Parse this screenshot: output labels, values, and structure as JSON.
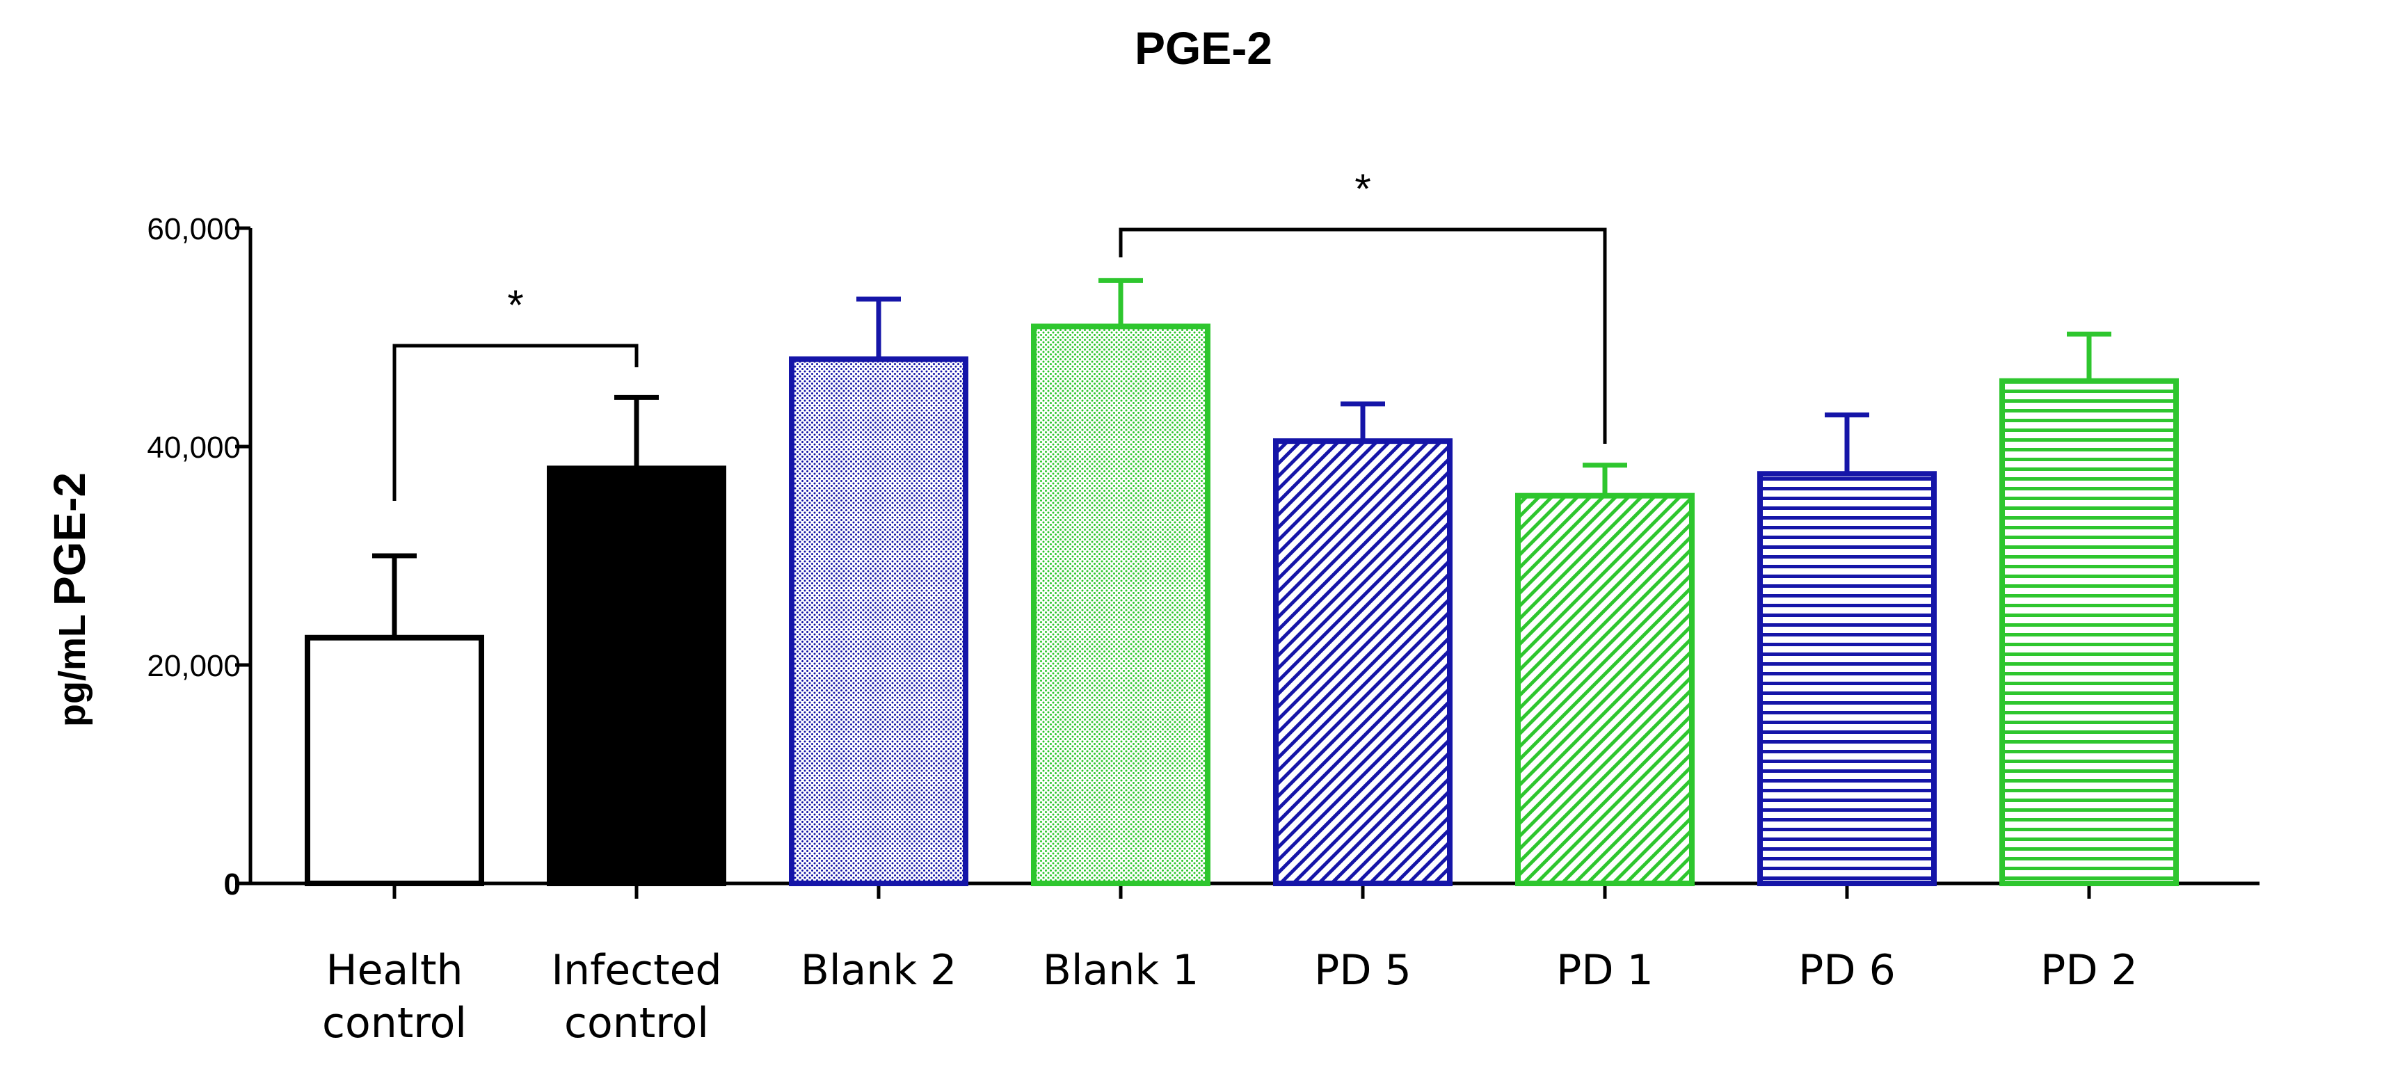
{
  "chart_data": {
    "type": "bar",
    "title": "PGE-2",
    "ylabel_unit": "pg/mL",
    "ylabel_analyte": "PGE-2",
    "ylim": [
      0,
      60000
    ],
    "yticks": [
      {
        "value": 0,
        "label": "0"
      },
      {
        "value": 20000,
        "label": "20,000"
      },
      {
        "value": 40000,
        "label": "40,000"
      },
      {
        "value": 60000,
        "label": "60,000"
      }
    ],
    "categories": [
      {
        "lines": [
          "Health",
          "control"
        ],
        "value": 22500,
        "error": 7500,
        "color": "#000000",
        "fill": "white"
      },
      {
        "lines": [
          "Infected",
          "control"
        ],
        "value": 38000,
        "error": 6500,
        "color": "#000000",
        "fill": "solid"
      },
      {
        "lines": [
          "Blank 2"
        ],
        "value": 48000,
        "error": 5500,
        "color": "#1515a8",
        "fill": "dots"
      },
      {
        "lines": [
          "Blank 1"
        ],
        "value": 51000,
        "error": 4200,
        "color": "#2ec62e",
        "fill": "dots"
      },
      {
        "lines": [
          "PD 5"
        ],
        "value": 40500,
        "error": 3400,
        "color": "#1515a8",
        "fill": "diagonal"
      },
      {
        "lines": [
          "PD 1"
        ],
        "value": 35500,
        "error": 2800,
        "color": "#2ec62e",
        "fill": "diagonal"
      },
      {
        "lines": [
          "PD 6"
        ],
        "value": 37500,
        "error": 5400,
        "color": "#1515a8",
        "fill": "horizontal"
      },
      {
        "lines": [
          "PD 2"
        ],
        "value": 46000,
        "error": 4300,
        "color": "#2ec62e",
        "fill": "horizontal"
      }
    ],
    "significance": [
      {
        "from": 0,
        "to": 1,
        "label": "*"
      },
      {
        "from": 3,
        "to": 5,
        "label": "*"
      }
    ]
  }
}
